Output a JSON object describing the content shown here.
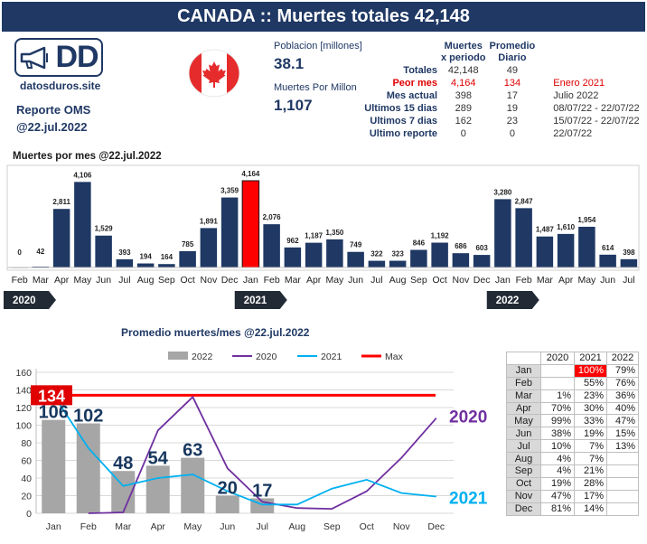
{
  "header": {
    "title": "CANADA :: Muertes totales 42,148"
  },
  "logo": {
    "text": "DD",
    "site": "datosduros.site"
  },
  "report": {
    "line1": "Reporte OMS",
    "line2": "@22.jul.2022"
  },
  "stats": {
    "population_label": "Poblacion [millones]",
    "population_value": "38.1",
    "per_million_label": "Muertes Por Millon",
    "per_million_value": "1,107"
  },
  "summary": {
    "header_col1": [
      "Muertes",
      "x periodo"
    ],
    "header_col2": [
      "Promedio",
      "Diario"
    ],
    "rows": [
      {
        "label": "Totales",
        "v1": "42,148",
        "v2": "49",
        "extra": ""
      },
      {
        "label": "Peor mes",
        "v1": "4,164",
        "v2": "134",
        "extra": "Enero 2021"
      },
      {
        "label": "Mes actual",
        "v1": "398",
        "v2": "17",
        "extra": "Julio 2022"
      },
      {
        "label": "Ultimos 15 dias",
        "v1": "289",
        "v2": "19",
        "extra": "08/07/22 - 22/07/22"
      },
      {
        "label": "Ultimos 7 dias",
        "v1": "162",
        "v2": "23",
        "extra": "15/07/22 - 22/07/22"
      },
      {
        "label": "Ultimo reporte",
        "v1": "0",
        "v2": "0",
        "extra": "22/07/22"
      }
    ]
  },
  "colors": {
    "navy": "#1f3864",
    "red": "#ff0000",
    "purple": "#7030a0",
    "cyan": "#00b0f0",
    "gray": "#a6a6a6"
  },
  "chart_data": [
    {
      "type": "bar",
      "title": "Muertes por mes @22.jul.2022",
      "categories": [
        "Feb",
        "Mar",
        "Apr",
        "May",
        "Jun",
        "Jul",
        "Aug",
        "Sep",
        "Oct",
        "Nov",
        "Dec",
        "Jan",
        "Feb",
        "Mar",
        "Apr",
        "May",
        "Jun",
        "Jul",
        "Aug",
        "Sep",
        "Oct",
        "Nov",
        "Dec",
        "Jan",
        "Feb",
        "Mar",
        "Apr",
        "May",
        "Jun",
        "Jul"
      ],
      "values": [
        0,
        42,
        2811,
        4106,
        1529,
        393,
        194,
        164,
        785,
        1891,
        3359,
        4164,
        2076,
        962,
        1187,
        1350,
        749,
        322,
        323,
        846,
        1192,
        686,
        603,
        3280,
        2847,
        1487,
        1610,
        1954,
        614,
        398
      ],
      "labels": [
        "0",
        "42",
        "2,811",
        "4,106",
        "1,529",
        "393",
        "194",
        "164",
        "785",
        "1,891",
        "3,359",
        "4,164",
        "2,076",
        "962",
        "1,187",
        "1,350",
        "749",
        "322",
        "323",
        "846",
        "1,192",
        "686",
        "603",
        "3,280",
        "2,847",
        "1,487",
        "1,610",
        "1,954",
        "614",
        "398"
      ],
      "highlight_index": 11,
      "years": [
        {
          "label": "2020",
          "start": 0
        },
        {
          "label": "2021",
          "start": 11
        },
        {
          "label": "2022",
          "start": 23
        }
      ],
      "ylim": [
        0,
        4500
      ]
    },
    {
      "type": "line",
      "title": "Promedio muertes/mes @22.jul.2022",
      "categories": [
        "Jan",
        "Feb",
        "Mar",
        "Apr",
        "May",
        "Jun",
        "Jul",
        "Aug",
        "Sep",
        "Oct",
        "Nov",
        "Dec"
      ],
      "bar_series": {
        "name": "2022",
        "values": [
          106,
          102,
          48,
          54,
          63,
          20,
          17
        ],
        "labels": [
          "106",
          "102",
          "48",
          "54",
          "63",
          "20",
          "17"
        ]
      },
      "series": [
        {
          "name": "2020",
          "values": [
            null,
            0,
            1,
            94,
            132,
            51,
            13,
            6,
            5,
            25,
            63,
            108
          ]
        },
        {
          "name": "2021",
          "values": [
            134,
            74,
            31,
            40,
            44,
            25,
            10,
            10,
            28,
            38,
            23,
            19
          ]
        }
      ],
      "max": {
        "name": "Max",
        "value": 134,
        "label": "134"
      },
      "end_labels": {
        "s2020": "2020",
        "s2021": "2021"
      },
      "yticks": [
        "0",
        "20",
        "40",
        "60",
        "80",
        "100",
        "120",
        "140",
        "160"
      ],
      "ylim": [
        0,
        160
      ],
      "legend_position": "top"
    }
  ],
  "pct_table": {
    "headers": [
      "",
      "2020",
      "2021",
      "2022"
    ],
    "rows": [
      {
        "m": "Jan",
        "a": "",
        "b": "100%",
        "c": "79%"
      },
      {
        "m": "Feb",
        "a": "",
        "b": "55%",
        "c": "76%"
      },
      {
        "m": "Mar",
        "a": "1%",
        "b": "23%",
        "c": "36%"
      },
      {
        "m": "Apr",
        "a": "70%",
        "b": "30%",
        "c": "40%"
      },
      {
        "m": "May",
        "a": "99%",
        "b": "33%",
        "c": "47%"
      },
      {
        "m": "Jun",
        "a": "38%",
        "b": "19%",
        "c": "15%"
      },
      {
        "m": "Jul",
        "a": "10%",
        "b": "7%",
        "c": "13%"
      },
      {
        "m": "Aug",
        "a": "4%",
        "b": "7%",
        "c": ""
      },
      {
        "m": "Sep",
        "a": "4%",
        "b": "21%",
        "c": ""
      },
      {
        "m": "Oct",
        "a": "19%",
        "b": "28%",
        "c": ""
      },
      {
        "m": "Nov",
        "a": "47%",
        "b": "17%",
        "c": ""
      },
      {
        "m": "Dec",
        "a": "81%",
        "b": "14%",
        "c": ""
      }
    ]
  }
}
